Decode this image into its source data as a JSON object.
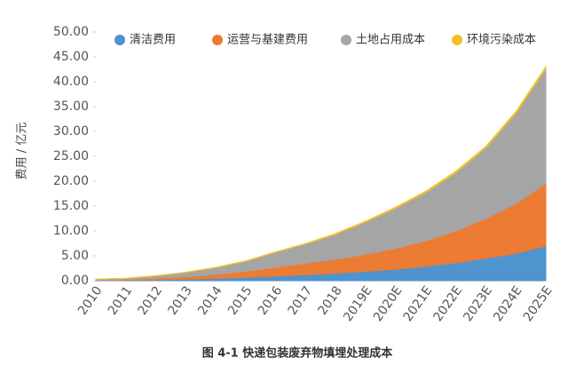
{
  "chart_data": {
    "type": "stacked-area",
    "caption": "图 4-1 快递包装废弃物填埋处理成本",
    "y_label": "费用 / 亿元",
    "categories": [
      "2010",
      "2011",
      "2012",
      "2013",
      "2014",
      "2015",
      "2016",
      "2017",
      "2018",
      "2019E",
      "2020E",
      "2021E",
      "2022E",
      "2023E",
      "2024E",
      "2025E"
    ],
    "series": [
      {
        "name": "清洁费用",
        "color": "#4f93cf",
        "values": [
          0.05,
          0.1,
          0.18,
          0.3,
          0.45,
          0.7,
          0.9,
          1.2,
          1.5,
          1.9,
          2.3,
          2.9,
          3.6,
          4.5,
          5.5,
          7.0
        ]
      },
      {
        "name": "运营与基建费用",
        "color": "#ec7b33",
        "values": [
          0.05,
          0.15,
          0.32,
          0.5,
          0.85,
          1.2,
          1.8,
          2.3,
          2.8,
          3.4,
          4.2,
          5.1,
          6.4,
          8.0,
          10.0,
          12.5
        ]
      },
      {
        "name": "土地占用成本",
        "color": "#a5a5a5",
        "values": [
          0.18,
          0.22,
          0.45,
          0.85,
          1.32,
          2.0,
          3.0,
          3.88,
          5.05,
          6.5,
          8.1,
          9.75,
          11.7,
          14.2,
          18.15,
          23.1
        ]
      },
      {
        "name": "环境污染成本",
        "color": "#f5c026",
        "values": [
          0.02,
          0.03,
          0.05,
          0.05,
          0.08,
          0.1,
          0.1,
          0.12,
          0.15,
          0.2,
          0.2,
          0.25,
          0.3,
          0.3,
          0.35,
          0.4
        ]
      }
    ],
    "ylim": [
      0,
      50
    ],
    "yticks": [
      {
        "value": 0,
        "label": "0.00"
      },
      {
        "value": 5,
        "label": "5.00"
      },
      {
        "value": 10,
        "label": "10.00"
      },
      {
        "value": 15,
        "label": "15.00"
      },
      {
        "value": 20,
        "label": "20.00"
      },
      {
        "value": 25,
        "label": "25.00"
      },
      {
        "value": 30,
        "label": "30.00"
      },
      {
        "value": 35,
        "label": "35.00"
      },
      {
        "value": 40,
        "label": "40.00"
      },
      {
        "value": 45,
        "label": "45.00"
      },
      {
        "value": 50,
        "label": "50.00"
      }
    ],
    "legend": "top"
  }
}
